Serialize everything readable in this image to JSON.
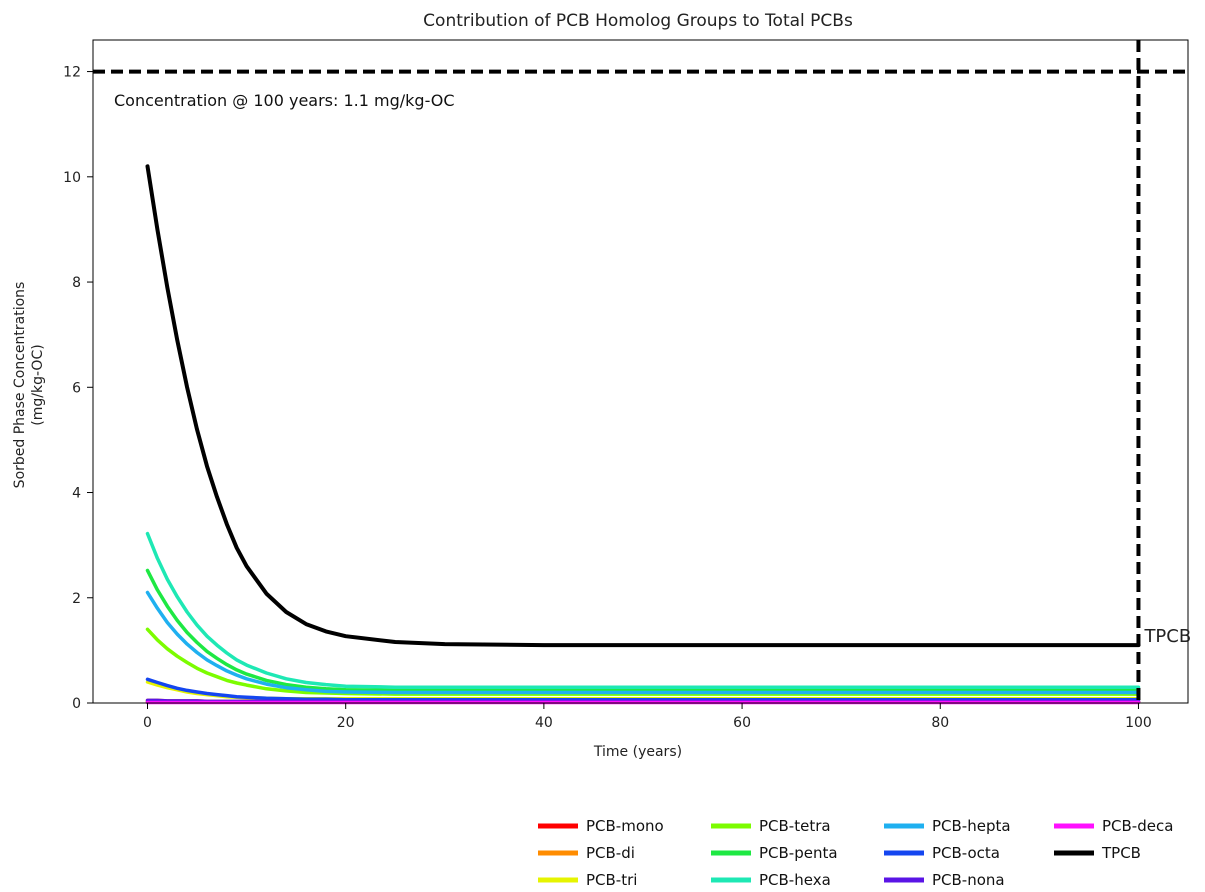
{
  "chart_data": {
    "type": "line",
    "title": "Contribution of PCB Homolog Groups to Total PCBs",
    "xlabel": "Time (years)",
    "ylabel": [
      "Sorbed Phase Concentrations",
      "(mg/kg-OC)"
    ],
    "xlim": [
      -5.5,
      105
    ],
    "ylim": [
      0,
      12.6
    ],
    "xticks": [
      0,
      20,
      40,
      60,
      80,
      100
    ],
    "yticks": [
      0,
      2,
      4,
      6,
      8,
      10,
      12
    ],
    "grid": false,
    "legend_position": "bottom-right",
    "annotation": "Concentration @ 100 years: 1.1 mg/kg-OC",
    "end_label": "TPCB",
    "reference_lines": {
      "horizontal_y": 12,
      "vertical_x": 100
    },
    "x": [
      0,
      1,
      2,
      3,
      4,
      5,
      6,
      7,
      8,
      9,
      10,
      12,
      14,
      16,
      18,
      20,
      25,
      30,
      40,
      50,
      60,
      70,
      80,
      90,
      100
    ],
    "series": [
      {
        "name": "PCB-mono",
        "color": "#ff0000",
        "values": [
          0.02,
          0.02,
          0.02,
          0.02,
          0.02,
          0.02,
          0.02,
          0.02,
          0.02,
          0.02,
          0.02,
          0.02,
          0.02,
          0.02,
          0.02,
          0.02,
          0.02,
          0.02,
          0.02,
          0.02,
          0.02,
          0.02,
          0.02,
          0.02,
          0.02
        ]
      },
      {
        "name": "PCB-di",
        "color": "#ff8c00",
        "values": [
          0.05,
          0.05,
          0.04,
          0.04,
          0.04,
          0.04,
          0.03,
          0.03,
          0.03,
          0.03,
          0.03,
          0.03,
          0.03,
          0.03,
          0.03,
          0.03,
          0.03,
          0.03,
          0.03,
          0.03,
          0.03,
          0.03,
          0.03,
          0.03,
          0.03
        ]
      },
      {
        "name": "PCB-tri",
        "color": "#e6f400",
        "values": [
          0.4,
          0.34,
          0.29,
          0.25,
          0.21,
          0.18,
          0.16,
          0.14,
          0.12,
          0.11,
          0.1,
          0.09,
          0.08,
          0.08,
          0.08,
          0.08,
          0.08,
          0.08,
          0.08,
          0.08,
          0.08,
          0.08,
          0.08,
          0.08,
          0.08
        ]
      },
      {
        "name": "PCB-tetra",
        "color": "#7cfc00",
        "values": [
          1.4,
          1.2,
          1.03,
          0.89,
          0.77,
          0.66,
          0.57,
          0.5,
          0.43,
          0.38,
          0.34,
          0.27,
          0.23,
          0.2,
          0.19,
          0.18,
          0.17,
          0.17,
          0.17,
          0.17,
          0.17,
          0.17,
          0.17,
          0.17,
          0.17
        ]
      },
      {
        "name": "PCB-penta",
        "color": "#1ee843",
        "values": [
          2.52,
          2.15,
          1.84,
          1.57,
          1.34,
          1.15,
          0.98,
          0.85,
          0.73,
          0.63,
          0.55,
          0.43,
          0.35,
          0.3,
          0.27,
          0.25,
          0.24,
          0.24,
          0.24,
          0.24,
          0.24,
          0.24,
          0.24,
          0.24,
          0.24
        ]
      },
      {
        "name": "PCB-hexa",
        "color": "#1ee8b4",
        "values": [
          3.22,
          2.75,
          2.35,
          2.02,
          1.73,
          1.48,
          1.27,
          1.1,
          0.95,
          0.82,
          0.72,
          0.57,
          0.46,
          0.39,
          0.35,
          0.32,
          0.3,
          0.3,
          0.3,
          0.3,
          0.3,
          0.3,
          0.3,
          0.3,
          0.3
        ]
      },
      {
        "name": "PCB-hepta",
        "color": "#1fb0f0",
        "values": [
          2.1,
          1.8,
          1.53,
          1.31,
          1.12,
          0.96,
          0.82,
          0.71,
          0.61,
          0.53,
          0.46,
          0.36,
          0.29,
          0.25,
          0.22,
          0.21,
          0.2,
          0.2,
          0.2,
          0.2,
          0.2,
          0.2,
          0.2,
          0.2,
          0.2
        ]
      },
      {
        "name": "PCB-octa",
        "color": "#1446f0",
        "values": [
          0.45,
          0.39,
          0.33,
          0.28,
          0.24,
          0.21,
          0.18,
          0.16,
          0.14,
          0.12,
          0.11,
          0.09,
          0.08,
          0.07,
          0.07,
          0.06,
          0.06,
          0.06,
          0.06,
          0.06,
          0.06,
          0.06,
          0.06,
          0.06,
          0.06
        ]
      },
      {
        "name": "PCB-nona",
        "color": "#5a14e6",
        "values": [
          0.05,
          0.05,
          0.04,
          0.04,
          0.04,
          0.04,
          0.03,
          0.03,
          0.03,
          0.03,
          0.03,
          0.03,
          0.03,
          0.03,
          0.03,
          0.03,
          0.03,
          0.03,
          0.03,
          0.03,
          0.03,
          0.03,
          0.03,
          0.03,
          0.03
        ]
      },
      {
        "name": "PCB-deca",
        "color": "#ff10ff",
        "values": [
          0.01,
          0.01,
          0.01,
          0.01,
          0.01,
          0.01,
          0.01,
          0.01,
          0.01,
          0.01,
          0.01,
          0.01,
          0.01,
          0.01,
          0.01,
          0.01,
          0.01,
          0.01,
          0.01,
          0.01,
          0.01,
          0.01,
          0.01,
          0.01,
          0.01
        ]
      },
      {
        "name": "TPCB",
        "color": "#000000",
        "values": [
          10.2,
          9.0,
          7.9,
          6.9,
          6.0,
          5.2,
          4.5,
          3.92,
          3.4,
          2.95,
          2.6,
          2.08,
          1.73,
          1.5,
          1.36,
          1.27,
          1.16,
          1.12,
          1.1,
          1.1,
          1.1,
          1.1,
          1.1,
          1.1,
          1.1
        ]
      }
    ]
  }
}
